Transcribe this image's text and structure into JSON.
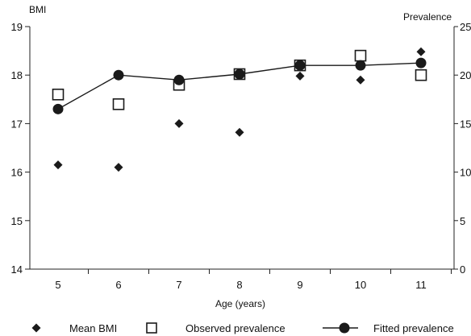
{
  "chart_data": {
    "type": "line",
    "title": "",
    "xlabel": "Age (years)",
    "ylabel_left": "BMI",
    "ylabel_right": "Prevalence",
    "x": [
      5,
      6,
      7,
      8,
      9,
      10,
      11
    ],
    "x_ticks": [
      "5",
      "6",
      "7",
      "8",
      "9",
      "10",
      "11"
    ],
    "ylim_left": [
      14,
      19
    ],
    "y_ticks_left": [
      "14",
      "15",
      "16",
      "17",
      "18",
      "19"
    ],
    "ylim_right": [
      0,
      25
    ],
    "y_ticks_right": [
      "0",
      "5",
      "10",
      "15",
      "20",
      "25"
    ],
    "grid": false,
    "legend_position": "bottom",
    "series": [
      {
        "name": "Mean BMI",
        "axis": "left",
        "marker": "diamond-filled",
        "line": false,
        "color": "#1a1a1a",
        "values": [
          16.15,
          16.1,
          17.0,
          16.82,
          17.98,
          17.9,
          18.48
        ]
      },
      {
        "name": "Observed prevalence",
        "axis": "right",
        "marker": "square-open",
        "line": false,
        "color": "#1a1a1a",
        "values": [
          18.0,
          17.0,
          19.0,
          20.1,
          21.0,
          22.0,
          20.0
        ]
      },
      {
        "name": "Fitted prevalence",
        "axis": "right",
        "marker": "circle-filled",
        "line": true,
        "color": "#1a1a1a",
        "values": [
          16.5,
          20.0,
          19.5,
          20.1,
          21.0,
          21.0,
          21.25
        ]
      }
    ]
  }
}
